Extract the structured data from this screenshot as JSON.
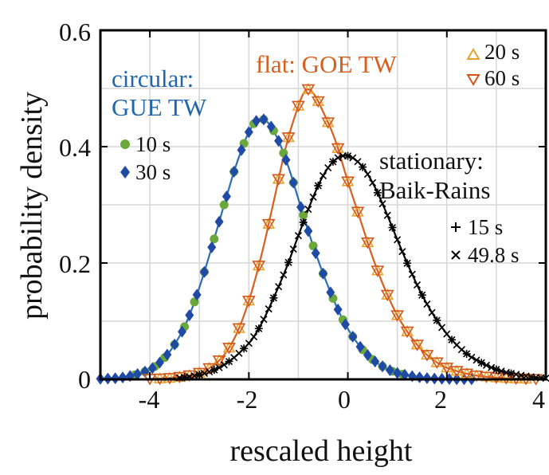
{
  "chart_data": {
    "type": "line",
    "xlabel": "rescaled height",
    "ylabel": "probability density",
    "xlim": [
      -5,
      4
    ],
    "ylim": [
      0,
      0.6
    ],
    "x_ticks": [
      -4,
      -2,
      0,
      2,
      4
    ],
    "x_tick_labels": [
      "-4",
      "-2",
      "0",
      "2",
      "4"
    ],
    "y_ticks": [
      0,
      0.2,
      0.4,
      0.6
    ],
    "y_tick_labels": [
      "0",
      "0.2",
      "0.4",
      "0.6"
    ],
    "grid": true,
    "annotations": [
      {
        "text": "circular:",
        "color": "#2166ac"
      },
      {
        "text": "GUE TW",
        "color": "#2166ac"
      },
      {
        "text": "flat: GOE TW",
        "color": "#d95f1e"
      },
      {
        "text": "stationary:",
        "color": "#111111"
      },
      {
        "text": "Baik-Rains",
        "color": "#111111"
      }
    ],
    "curves": [
      {
        "color": "#2a6db5",
        "x": [
          -5.0,
          -4.5,
          -4.0,
          -3.75,
          -3.5,
          -3.25,
          -3.0,
          -2.75,
          -2.5,
          -2.25,
          -2.0,
          -1.8,
          -1.6,
          -1.4,
          -1.2,
          -1.0,
          -0.8,
          -0.6,
          -0.4,
          -0.2,
          0.0,
          0.25,
          0.5,
          0.75,
          1.0,
          1.5,
          2.0,
          2.5,
          3.0
        ],
        "y": [
          0.001,
          0.004,
          0.017,
          0.033,
          0.06,
          0.1,
          0.158,
          0.227,
          0.3,
          0.37,
          0.425,
          0.447,
          0.44,
          0.41,
          0.365,
          0.31,
          0.255,
          0.205,
          0.16,
          0.12,
          0.087,
          0.056,
          0.034,
          0.02,
          0.011,
          0.003,
          0.0008,
          0.0002,
          0.0
        ]
      },
      {
        "color": "#d95f1e",
        "x": [
          -5.0,
          -4.0,
          -3.5,
          -3.0,
          -2.75,
          -2.5,
          -2.25,
          -2.0,
          -1.75,
          -1.5,
          -1.25,
          -1.0,
          -0.85,
          -0.7,
          -0.5,
          -0.25,
          0.0,
          0.25,
          0.5,
          0.75,
          1.0,
          1.25,
          1.5,
          1.75,
          2.0,
          2.5,
          3.0,
          3.5,
          4.0
        ],
        "y": [
          0.0,
          0.0008,
          0.003,
          0.011,
          0.022,
          0.042,
          0.078,
          0.135,
          0.212,
          0.305,
          0.4,
          0.47,
          0.497,
          0.492,
          0.46,
          0.41,
          0.34,
          0.275,
          0.21,
          0.155,
          0.11,
          0.076,
          0.05,
          0.032,
          0.02,
          0.008,
          0.003,
          0.001,
          0.0003
        ]
      },
      {
        "color": "#000000",
        "x": [
          -5.0,
          -4.0,
          -3.5,
          -3.0,
          -2.5,
          -2.0,
          -1.75,
          -1.5,
          -1.25,
          -1.0,
          -0.75,
          -0.5,
          -0.25,
          0.0,
          0.25,
          0.5,
          0.75,
          1.0,
          1.25,
          1.5,
          1.75,
          2.0,
          2.25,
          2.5,
          3.0,
          3.5,
          4.0
        ],
        "y": [
          0.0,
          0.0004,
          0.002,
          0.008,
          0.025,
          0.062,
          0.095,
          0.14,
          0.19,
          0.247,
          0.303,
          0.35,
          0.378,
          0.384,
          0.37,
          0.338,
          0.292,
          0.24,
          0.19,
          0.145,
          0.108,
          0.078,
          0.055,
          0.038,
          0.017,
          0.007,
          0.002
        ]
      }
    ],
    "series": [
      {
        "name": "10 s",
        "marker": "circle",
        "color": "#6aa83a",
        "group": 0,
        "x": [
          -4.3,
          -4.1,
          -3.9,
          -3.7,
          -3.5,
          -3.3,
          -3.1,
          -2.9,
          -2.7,
          -2.5,
          -2.3,
          -2.1,
          -1.9,
          -1.7,
          -1.5,
          -1.3,
          -1.1,
          -0.9,
          -0.7,
          -0.5,
          -0.3,
          -0.1,
          0.1,
          0.3,
          0.5,
          0.7,
          0.9,
          1.1
        ]
      },
      {
        "name": "30 s",
        "marker": "diamond",
        "color": "#1f4aa6",
        "group": 0,
        "x": [
          -5.0,
          -4.85,
          -4.7,
          -4.55,
          -4.4,
          -4.25,
          -4.1,
          -3.95,
          -3.8,
          -3.65,
          -3.5,
          -3.35,
          -3.2,
          -3.05,
          -2.9,
          -2.75,
          -2.6,
          -2.45,
          -2.3,
          -2.15,
          -2.0,
          -1.85,
          -1.7,
          -1.55,
          -1.4,
          -1.25,
          -1.1,
          -0.95,
          -0.8,
          -0.65,
          -0.5,
          -0.35,
          -0.2,
          -0.05,
          0.1,
          0.25,
          0.4,
          0.55,
          0.7,
          0.85,
          1.0,
          1.15,
          1.3,
          1.45,
          1.6,
          1.75,
          1.9,
          2.05,
          2.2,
          2.35,
          2.5
        ]
      },
      {
        "name": "20 s",
        "marker": "triangle-up",
        "color": "#e8a32c",
        "group": 1,
        "x": [
          -3.8,
          -3.6,
          -3.4,
          -3.2,
          -3.0,
          -2.8,
          -2.6,
          -2.4,
          -2.2,
          -2.0,
          -1.8,
          -1.6,
          -1.4,
          -1.2,
          -1.0,
          -0.8,
          -0.6,
          -0.4,
          -0.2,
          0.0,
          0.2,
          0.4,
          0.6,
          0.8,
          1.0,
          1.2,
          1.4,
          1.6,
          1.8,
          2.0,
          2.2,
          2.4,
          2.6,
          2.8,
          3.0,
          3.2,
          3.4,
          3.6
        ]
      },
      {
        "name": "60 s",
        "marker": "triangle-down",
        "color": "#d2551a",
        "group": 1,
        "x": [
          -4.0,
          -3.8,
          -3.6,
          -3.4,
          -3.2,
          -3.0,
          -2.8,
          -2.6,
          -2.4,
          -2.2,
          -2.0,
          -1.8,
          -1.6,
          -1.4,
          -1.2,
          -1.0,
          -0.8,
          -0.6,
          -0.4,
          -0.2,
          0.0,
          0.2,
          0.4,
          0.6,
          0.8,
          1.0,
          1.2,
          1.4,
          1.6,
          1.8,
          2.0,
          2.2,
          2.4,
          2.6,
          2.8,
          3.0,
          3.2,
          3.4,
          3.6,
          3.8
        ]
      },
      {
        "name": "15 s",
        "marker": "plus",
        "color": "#000000",
        "group": 2,
        "x": [
          -3.3,
          -3.0,
          -2.7,
          -2.4,
          -2.1,
          -1.8,
          -1.5,
          -1.2,
          -0.9,
          -0.6,
          -0.3,
          0.0,
          0.3,
          0.6,
          0.9,
          1.2,
          1.5,
          1.8,
          2.1,
          2.4,
          2.7,
          3.0,
          3.3
        ]
      },
      {
        "name": "49.8 s",
        "marker": "cross",
        "color": "#000000",
        "group": 2,
        "x": [
          -3.4,
          -3.3,
          -3.2,
          -3.1,
          -3.0,
          -2.9,
          -2.8,
          -2.7,
          -2.6,
          -2.5,
          -2.4,
          -2.3,
          -2.2,
          -2.1,
          -2.0,
          -1.9,
          -1.8,
          -1.7,
          -1.6,
          -1.5,
          -1.4,
          -1.3,
          -1.2,
          -1.1,
          -1.0,
          -0.9,
          -0.8,
          -0.7,
          -0.6,
          -0.5,
          -0.4,
          -0.3,
          -0.2,
          -0.1,
          0.0,
          0.1,
          0.2,
          0.3,
          0.4,
          0.5,
          0.6,
          0.7,
          0.8,
          0.9,
          1.0,
          1.1,
          1.2,
          1.3,
          1.4,
          1.5,
          1.6,
          1.7,
          1.8,
          1.9,
          2.0,
          2.1,
          2.2,
          2.3,
          2.4,
          2.5,
          2.6,
          2.7,
          2.8,
          2.9,
          3.0,
          3.1,
          3.2,
          3.3,
          3.4,
          3.5,
          3.6,
          3.7,
          3.8,
          3.9,
          4.0
        ]
      }
    ],
    "legend_labels": {
      "s10": "10 s",
      "s30": "30 s",
      "s20": "20 s",
      "s60": "60 s",
      "s15": "15 s",
      "s49": "49.8 s"
    }
  }
}
